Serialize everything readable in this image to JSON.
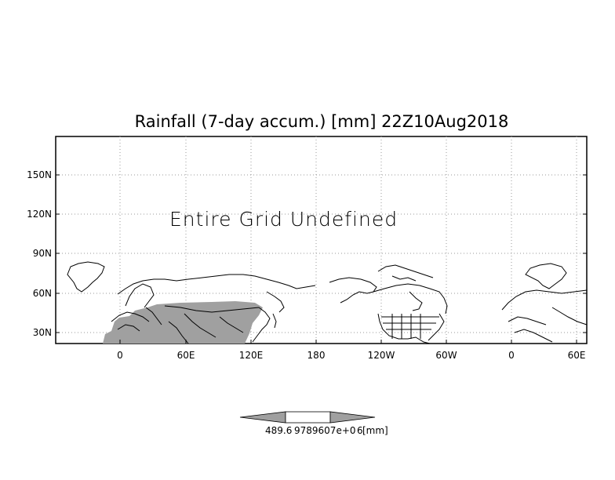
{
  "title": "Rainfall (7-day accum.) [mm] 22Z10Aug2018",
  "message": "Entire Grid Undefined",
  "lat_labels": [
    "150N",
    "120N",
    "90N",
    "60N",
    "30N"
  ],
  "lon_labels": [
    "0",
    "60E",
    "120E",
    "180",
    "120W",
    "60W",
    "0",
    "60E"
  ],
  "colorbar": {
    "left_label": "489.6",
    "center_label": "9789607e+0",
    "mid_label": "6",
    "unit": "[mm]"
  },
  "colors": {
    "land_mask": "#a0a0a0",
    "frame": "#000000",
    "grid": "#9a9a9a"
  }
}
